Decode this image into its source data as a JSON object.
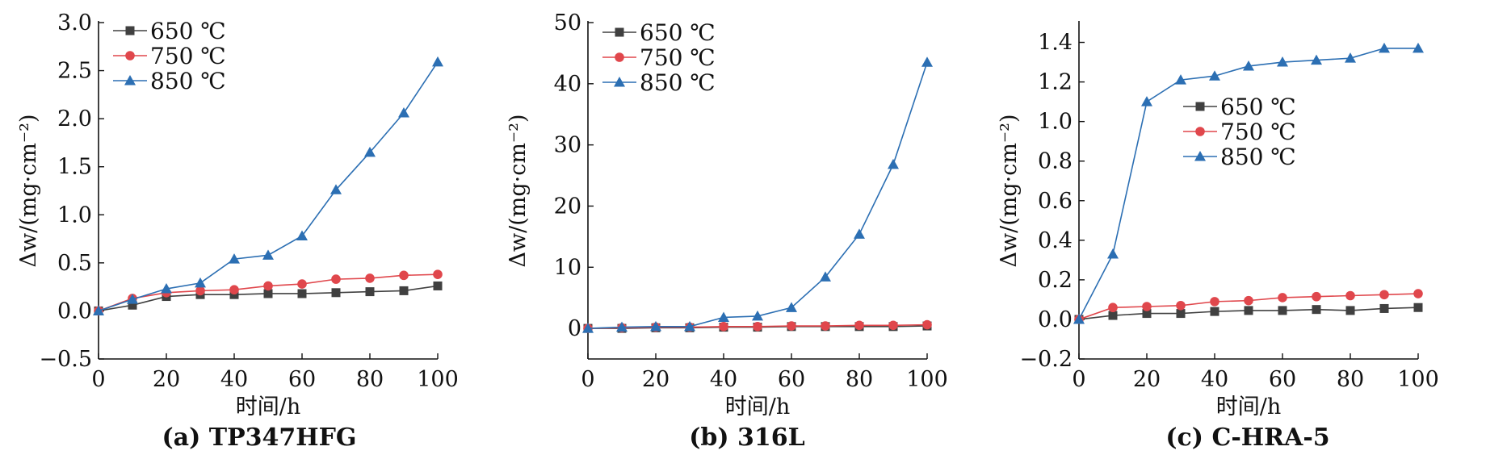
{
  "colors": {
    "650": "#404040",
    "750": "#e0474c",
    "850": "#2c6fb3"
  },
  "chart_data": [
    {
      "type": "line",
      "caption": "(a) TP347HFG",
      "xlabel": "时间/h",
      "ylabel": "Δw/(mg·cm⁻²)",
      "xlim": [
        0,
        100
      ],
      "ylim": [
        -0.5,
        3.0
      ],
      "xticks": [
        "0",
        "20",
        "40",
        "60",
        "80",
        "100"
      ],
      "yticks": [
        "−0.5",
        "0.0",
        "0.5",
        "1.0",
        "1.5",
        "2.0",
        "2.5",
        "3.0"
      ],
      "x": [
        0,
        10,
        20,
        30,
        40,
        50,
        60,
        70,
        80,
        90,
        100
      ],
      "legend_position": "top-left",
      "series": [
        {
          "name": "650 ℃",
          "marker": "square",
          "values": [
            0,
            0.06,
            0.15,
            0.17,
            0.17,
            0.18,
            0.18,
            0.19,
            0.2,
            0.21,
            0.26
          ]
        },
        {
          "name": "750 ℃",
          "marker": "circle",
          "values": [
            0,
            0.13,
            0.19,
            0.21,
            0.22,
            0.26,
            0.28,
            0.33,
            0.34,
            0.37,
            0.38
          ]
        },
        {
          "name": "850 ℃",
          "marker": "triangle",
          "values": [
            0,
            0.12,
            0.23,
            0.29,
            0.54,
            0.58,
            0.78,
            1.26,
            1.65,
            2.06,
            2.59
          ]
        }
      ]
    },
    {
      "type": "line",
      "caption": "(b) 316L",
      "xlabel": "时间/h",
      "ylabel": "Δw/(mg·cm⁻²)",
      "xlim": [
        0,
        100
      ],
      "ylim": [
        -5,
        50
      ],
      "xticks": [
        "0",
        "20",
        "40",
        "60",
        "80",
        "100"
      ],
      "yticks": [
        "0",
        "10",
        "20",
        "30",
        "40",
        "50"
      ],
      "x": [
        0,
        10,
        20,
        30,
        40,
        50,
        60,
        70,
        80,
        90,
        100
      ],
      "legend_position": "top-left",
      "series": [
        {
          "name": "650 ℃",
          "marker": "square",
          "values": [
            0,
            0,
            0.1,
            0.1,
            0.2,
            0.2,
            0.3,
            0.3,
            0.3,
            0.3,
            0.4
          ]
        },
        {
          "name": "750 ℃",
          "marker": "circle",
          "values": [
            0,
            0.1,
            0.2,
            0.2,
            0.3,
            0.3,
            0.4,
            0.4,
            0.5,
            0.5,
            0.6
          ]
        },
        {
          "name": "850 ℃",
          "marker": "triangle",
          "values": [
            0,
            0.2,
            0.3,
            0.3,
            1.8,
            2.0,
            3.4,
            8.4,
            15.4,
            26.8,
            43.5
          ]
        }
      ]
    },
    {
      "type": "line",
      "caption": "(c) C-HRA-5",
      "xlabel": "时间/h",
      "ylabel": "Δw/(mg·cm⁻²)",
      "xlim": [
        0,
        100
      ],
      "ylim": [
        -0.2,
        1.5
      ],
      "xticks": [
        "0",
        "20",
        "40",
        "60",
        "80",
        "100"
      ],
      "yticks": [
        "−0.2",
        "0.0",
        "0.2",
        "0.4",
        "0.6",
        "0.8",
        "1.0",
        "1.2",
        "1.4"
      ],
      "x": [
        0,
        10,
        20,
        30,
        40,
        50,
        60,
        70,
        80,
        90,
        100
      ],
      "legend_position": "upper-middle",
      "series": [
        {
          "name": "650 ℃",
          "marker": "square",
          "values": [
            0,
            0.02,
            0.03,
            0.03,
            0.04,
            0.045,
            0.045,
            0.05,
            0.045,
            0.055,
            0.06
          ]
        },
        {
          "name": "750 ℃",
          "marker": "circle",
          "values": [
            0,
            0.06,
            0.065,
            0.07,
            0.09,
            0.095,
            0.11,
            0.115,
            0.12,
            0.125,
            0.13
          ]
        },
        {
          "name": "850 ℃",
          "marker": "triangle",
          "values": [
            0,
            0.33,
            1.1,
            1.21,
            1.23,
            1.28,
            1.3,
            1.31,
            1.32,
            1.37,
            1.37
          ]
        }
      ]
    }
  ]
}
